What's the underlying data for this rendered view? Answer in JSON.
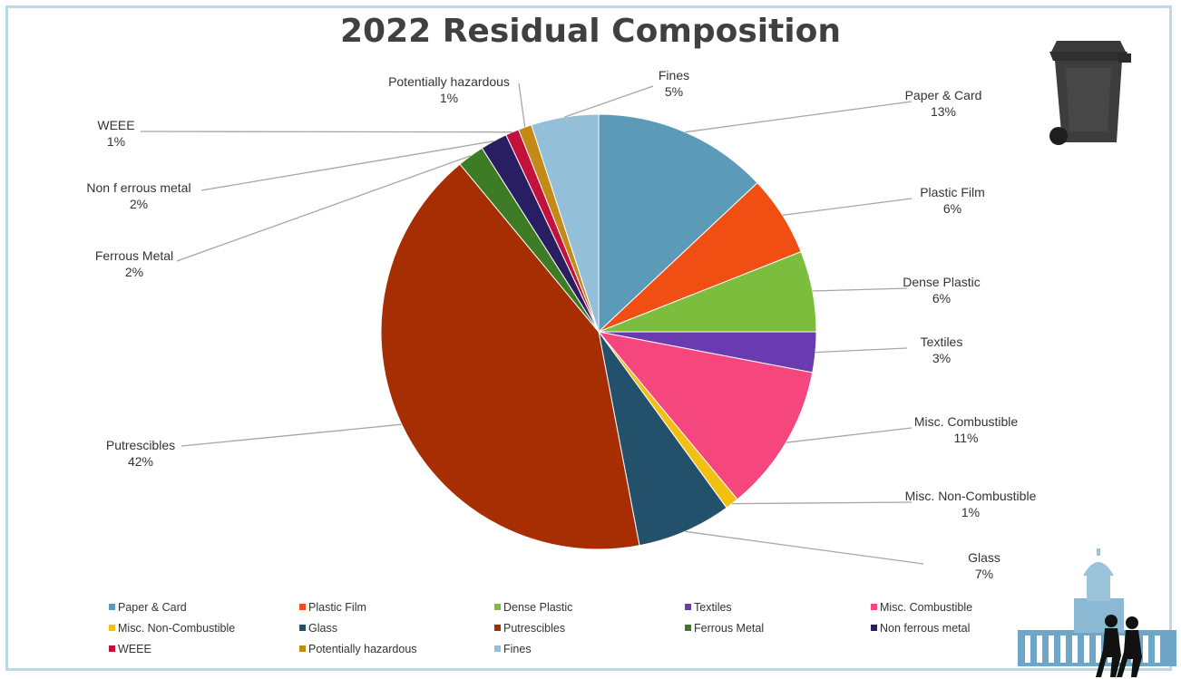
{
  "chart_data": {
    "type": "pie",
    "title": "2022 Residual Composition",
    "slices": [
      {
        "name": "Paper & Card",
        "label": "Paper & Card",
        "value": 13,
        "pct_label": "13%",
        "color": "#5b9bb8"
      },
      {
        "name": "Plastic Film",
        "label": "Plastic Film",
        "value": 6,
        "pct_label": "6%",
        "color": "#f04e12"
      },
      {
        "name": "Dense Plastic",
        "label": "Dense Plastic",
        "value": 6,
        "pct_label": "6%",
        "color": "#7cbd3d"
      },
      {
        "name": "Textiles",
        "label": "Textiles",
        "value": 3,
        "pct_label": "3%",
        "color": "#6a3bb0"
      },
      {
        "name": "Misc. Combustible",
        "label": "Misc. Combustible",
        "value": 11,
        "pct_label": "11%",
        "color": "#f5477d"
      },
      {
        "name": "Misc. Non-Combustible",
        "label": "Misc. Non-Combustible",
        "value": 1,
        "pct_label": "1%",
        "color": "#f2c012"
      },
      {
        "name": "Glass",
        "label": "Glass",
        "value": 7,
        "pct_label": "7%",
        "color": "#23506b"
      },
      {
        "name": "Putrescibles",
        "label": "Putrescibles",
        "value": 42,
        "pct_label": "42%",
        "color": "#a72e03"
      },
      {
        "name": "Ferrous Metal",
        "label": "Ferrous Metal",
        "value": 2,
        "pct_label": "2%",
        "color": "#3d7b24"
      },
      {
        "name": "Non ferrous metal",
        "label": "Non f errous metal",
        "value": 2,
        "pct_label": "2%",
        "color": "#2a1e63"
      },
      {
        "name": "WEEE",
        "label": "WEEE",
        "value": 1,
        "pct_label": "1%",
        "color": "#c2113c"
      },
      {
        "name": "Potentially hazardous",
        "label": "Potentially  hazardous",
        "value": 1,
        "pct_label": "1%",
        "color": "#c48a17"
      },
      {
        "name": "Fines",
        "label": "Fines",
        "value": 5,
        "pct_label": "5%",
        "color": "#93c0d8"
      }
    ],
    "legend_position": "bottom"
  },
  "images": {
    "wheelie_bin": "wheelie-bin-icon",
    "logo": "civic-hall-silhouette-logo"
  }
}
